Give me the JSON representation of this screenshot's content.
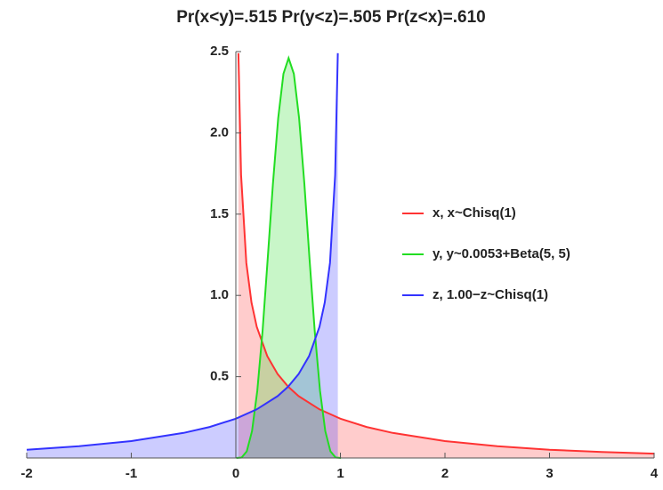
{
  "chart_data": {
    "type": "area",
    "title": "Pr(x<y)=.515 Pr(y<z)=.505 Pr(z<x)=.610",
    "xlim": [
      -2,
      4
    ],
    "ylim": [
      0,
      2.5
    ],
    "xticks": [
      -2,
      -1,
      0,
      1,
      2,
      3,
      4
    ],
    "yticks": [
      0.5,
      1.0,
      1.5,
      2.0,
      2.5
    ],
    "legend": "right",
    "series": [
      {
        "name": "x, x~Chisq(1)",
        "color": "#ff3333",
        "x": [
          0.025,
          0.05,
          0.1,
          0.15,
          0.2,
          0.3,
          0.4,
          0.5,
          0.6,
          0.8,
          1,
          1.25,
          1.5,
          2,
          2.5,
          3,
          3.5,
          4
        ],
        "values": [
          2.49,
          1.74,
          1.2,
          0.956,
          0.807,
          0.627,
          0.516,
          0.439,
          0.381,
          0.299,
          0.242,
          0.191,
          0.154,
          0.104,
          0.072,
          0.051,
          0.037,
          0.027
        ]
      },
      {
        "name": "y, y~0.0053+Beta(5, 5)",
        "color": "#22dd22",
        "x": [
          0.005,
          0.055,
          0.105,
          0.155,
          0.205,
          0.255,
          0.305,
          0.355,
          0.405,
          0.455,
          0.505,
          0.555,
          0.605,
          0.655,
          0.705,
          0.755,
          0.805,
          0.855,
          0.905,
          0.955,
          1.005
        ],
        "values": [
          0,
          0.003,
          0.041,
          0.166,
          0.413,
          0.778,
          1.225,
          1.688,
          2.09,
          2.363,
          2.46,
          2.363,
          2.09,
          1.688,
          1.225,
          0.778,
          0.413,
          0.166,
          0.041,
          0.003,
          0
        ]
      },
      {
        "name": "z, 1.00−z~Chisq(1)",
        "color": "#3333ff",
        "x": [
          -2,
          -1.5,
          -1,
          -0.5,
          -0.25,
          0,
          0.2,
          0.4,
          0.5,
          0.6,
          0.7,
          0.8,
          0.85,
          0.9,
          0.95,
          0.975
        ],
        "values": [
          0.051,
          0.072,
          0.104,
          0.154,
          0.191,
          0.242,
          0.299,
          0.381,
          0.439,
          0.516,
          0.627,
          0.807,
          0.956,
          1.2,
          1.74,
          2.49
        ]
      }
    ]
  }
}
